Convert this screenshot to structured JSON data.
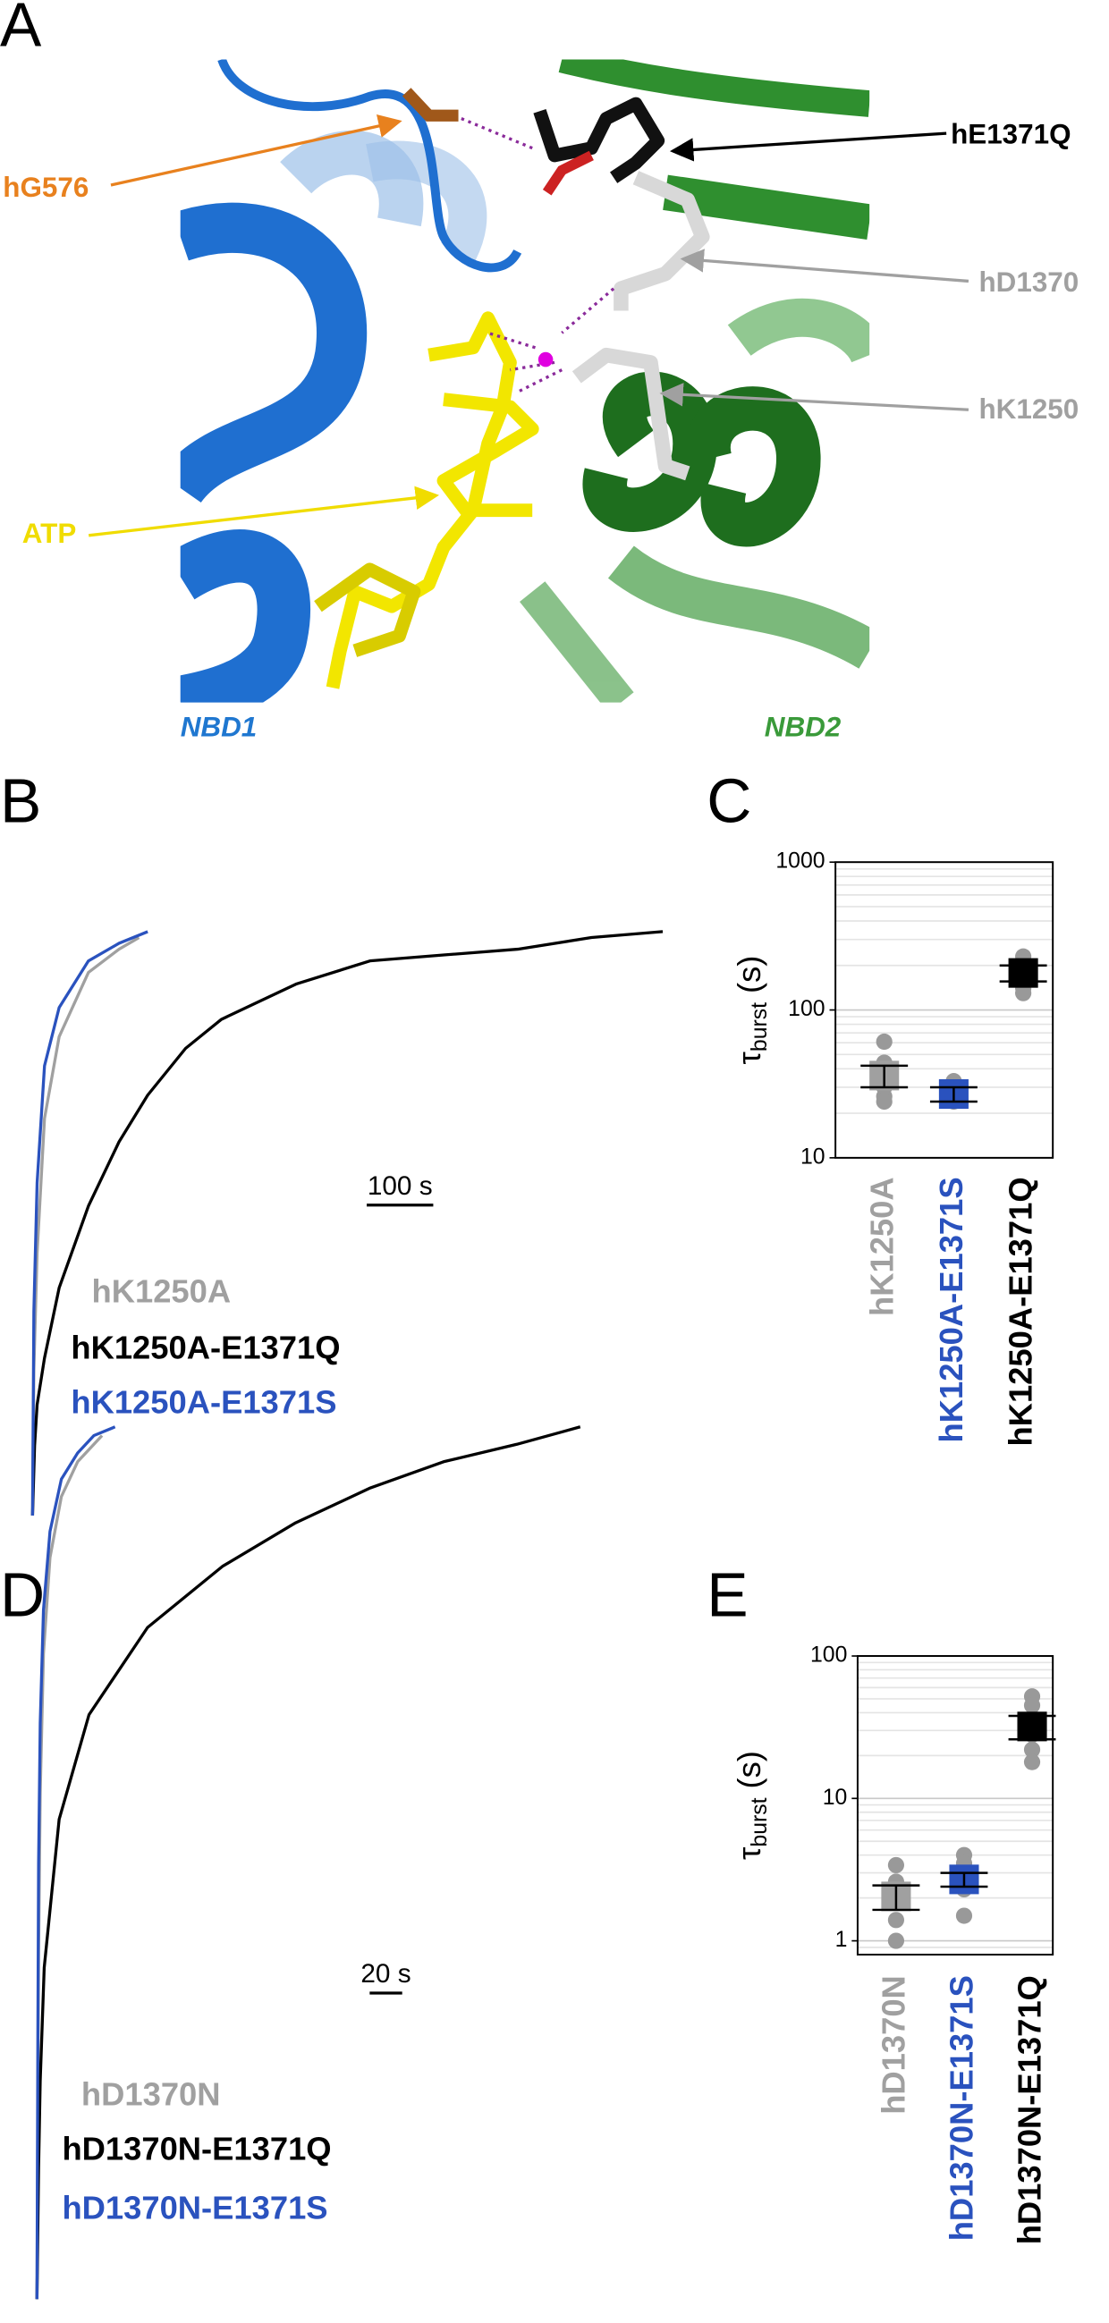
{
  "panel_labels": {
    "a": "A",
    "b": "B",
    "c": "C",
    "d": "D",
    "e": "E"
  },
  "structure": {
    "labels": {
      "g576": "hG576",
      "e1371q": "hE1371Q",
      "d1370": "hD1370",
      "k1250": "hK1250",
      "atp": "ATP"
    },
    "nbd1": "NBD1",
    "nbd2": "NBD2"
  },
  "chart_data": [
    {
      "type": "trace",
      "scalebar": {
        "value": 100,
        "label": "100 s"
      },
      "series": [
        {
          "name": "hK1250A",
          "color": "#a0a0a0",
          "x": [
            0,
            2,
            7,
            18,
            40,
            84,
            130,
            160
          ],
          "values": [
            0,
            0.25,
            0.45,
            0.68,
            0.82,
            0.93,
            0.97,
            0.99
          ]
        },
        {
          "name": "hK1250A-E1371Q",
          "color": "#000000",
          "x": [
            0,
            3,
            7,
            18,
            40,
            84,
            130,
            173,
            230,
            284,
            340,
            396,
            507,
            618,
            729,
            840,
            947
          ],
          "values": [
            0,
            0.12,
            0.19,
            0.27,
            0.39,
            0.53,
            0.64,
            0.72,
            0.8,
            0.85,
            0.88,
            0.91,
            0.95,
            0.96,
            0.97,
            0.99,
            1.0
          ]
        },
        {
          "name": "hK1250A-E1371S",
          "color": "#2a52be",
          "x": [
            0,
            2,
            7,
            18,
            40,
            84,
            130,
            173
          ],
          "values": [
            0,
            0.35,
            0.57,
            0.77,
            0.87,
            0.95,
            0.98,
            1.0
          ]
        }
      ]
    },
    {
      "type": "dotplot",
      "ylabel_symbol": "τ",
      "ylabel_subscript": "burst",
      "ylabel_unit": "(s)",
      "log_y": true,
      "ylim": [
        10,
        1000
      ],
      "yticks": [
        10,
        100,
        1000
      ],
      "minor_grid": [
        20,
        30,
        40,
        50,
        60,
        70,
        80,
        90,
        200,
        300,
        400,
        500,
        600,
        700,
        800,
        900
      ],
      "categories": [
        "hK1250A",
        "hK1250A-E1371S",
        "hK1250A-E1371Q"
      ],
      "category_colors": [
        "#a0a0a0",
        "#2a52be",
        "#000000"
      ],
      "means": [
        36,
        27,
        178
      ],
      "errors": [
        6,
        3,
        22
      ],
      "points": [
        [
          61,
          44,
          37,
          30,
          26,
          24
        ],
        [
          33,
          30,
          27,
          25,
          24
        ],
        [
          230,
          210,
          190,
          160,
          140,
          130
        ]
      ],
      "point_color": "#999999"
    },
    {
      "type": "trace",
      "scalebar": {
        "value": 20,
        "label": "20 s"
      },
      "series": [
        {
          "name": "hD1370N",
          "color": "#a0a0a0",
          "x": [
            0,
            0.5,
            1,
            2,
            4,
            8,
            15,
            25,
            40
          ],
          "values": [
            0,
            0.22,
            0.4,
            0.58,
            0.74,
            0.85,
            0.92,
            0.96,
            0.99
          ]
        },
        {
          "name": "hD1370N-E1371Q",
          "color": "#000000",
          "x": [
            0,
            1,
            2,
            4.5,
            13.6,
            32,
            68,
            114,
            159,
            205,
            250,
            295,
            334
          ],
          "values": [
            0,
            0.15,
            0.25,
            0.38,
            0.55,
            0.67,
            0.77,
            0.84,
            0.89,
            0.93,
            0.96,
            0.98,
            1.0
          ]
        },
        {
          "name": "hD1370N-E1371S",
          "color": "#2a52be",
          "x": [
            0,
            0.5,
            1,
            2,
            4,
            8,
            15,
            25,
            35,
            48
          ],
          "values": [
            0,
            0.3,
            0.5,
            0.66,
            0.79,
            0.88,
            0.94,
            0.97,
            0.99,
            1.0
          ]
        }
      ]
    },
    {
      "type": "dotplot",
      "ylabel_symbol": "τ",
      "ylabel_subscript": "burst",
      "ylabel_unit": "(s)",
      "log_y": true,
      "ylim": [
        0.8,
        100
      ],
      "yticks": [
        1,
        10,
        100
      ],
      "minor_grid": [
        0.9,
        2,
        3,
        4,
        5,
        6,
        7,
        8,
        9,
        20,
        30,
        40,
        50,
        60,
        70,
        80,
        90
      ],
      "categories": [
        "hD1370N",
        "hD1370N-E1371S",
        "hD1370N-E1371Q"
      ],
      "category_colors": [
        "#a0a0a0",
        "#2a52be",
        "#000000"
      ],
      "means": [
        2.05,
        2.7,
        32
      ],
      "errors": [
        0.4,
        0.3,
        6
      ],
      "points": [
        [
          3.4,
          2.6,
          1.9,
          1.4,
          1.0
        ],
        [
          4.0,
          3.5,
          3.0,
          2.3,
          1.5
        ],
        [
          52,
          45,
          28,
          22,
          18
        ]
      ],
      "point_color": "#999999"
    }
  ]
}
